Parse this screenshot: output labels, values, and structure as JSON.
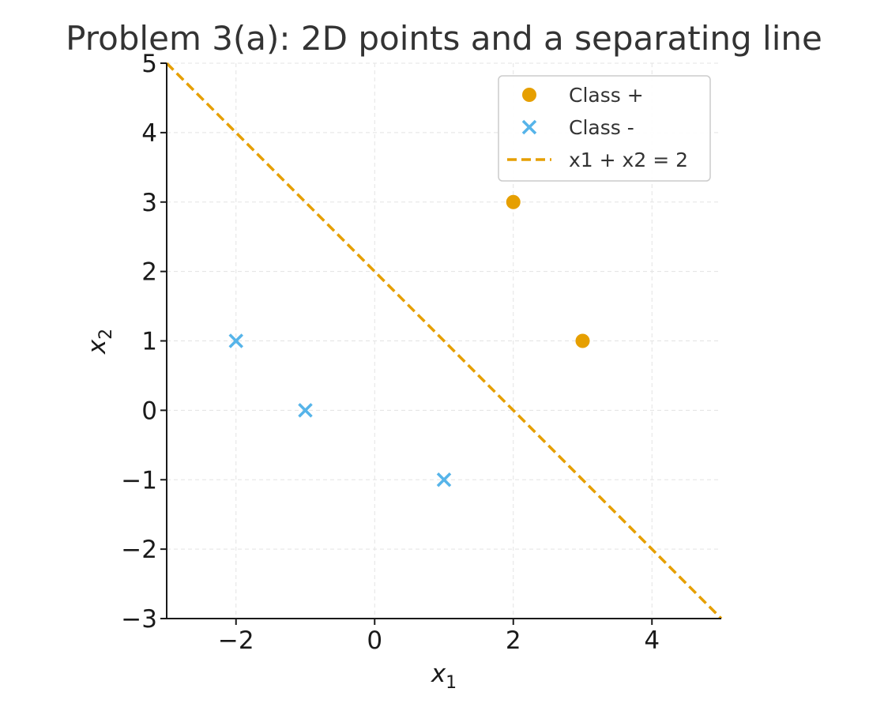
{
  "chart_data": {
    "type": "scatter",
    "title": "Problem 3(a): 2D points and a separating line",
    "xlabel": "x",
    "xlabel_sub": "1",
    "ylabel": "x",
    "ylabel_sub": "2",
    "xlim": [
      -3,
      5
    ],
    "ylim": [
      -3,
      5
    ],
    "xticks": [
      -2,
      0,
      2,
      4
    ],
    "xtick_labels": [
      "−2",
      "0",
      "2",
      "4"
    ],
    "yticks": [
      -3,
      -2,
      -1,
      0,
      1,
      2,
      3,
      4,
      5
    ],
    "ytick_labels": [
      "−3",
      "−2",
      "−1",
      "0",
      "1",
      "2",
      "3",
      "4",
      "5"
    ],
    "grid": true,
    "legend_position": "top-right",
    "series": [
      {
        "name": "Class +",
        "marker": "circle",
        "color": "#E69F00",
        "points": [
          [
            2,
            3
          ],
          [
            3,
            1
          ]
        ]
      },
      {
        "name": "Class -",
        "marker": "x",
        "color": "#56B4E9",
        "points": [
          [
            -2,
            1
          ],
          [
            -1,
            0
          ],
          [
            1,
            -1
          ]
        ]
      }
    ],
    "lines": [
      {
        "name": "x1 + x2 = 2",
        "style": "dashed",
        "color": "#E69F00",
        "points": [
          [
            -3,
            5
          ],
          [
            5,
            -3
          ]
        ]
      }
    ]
  }
}
